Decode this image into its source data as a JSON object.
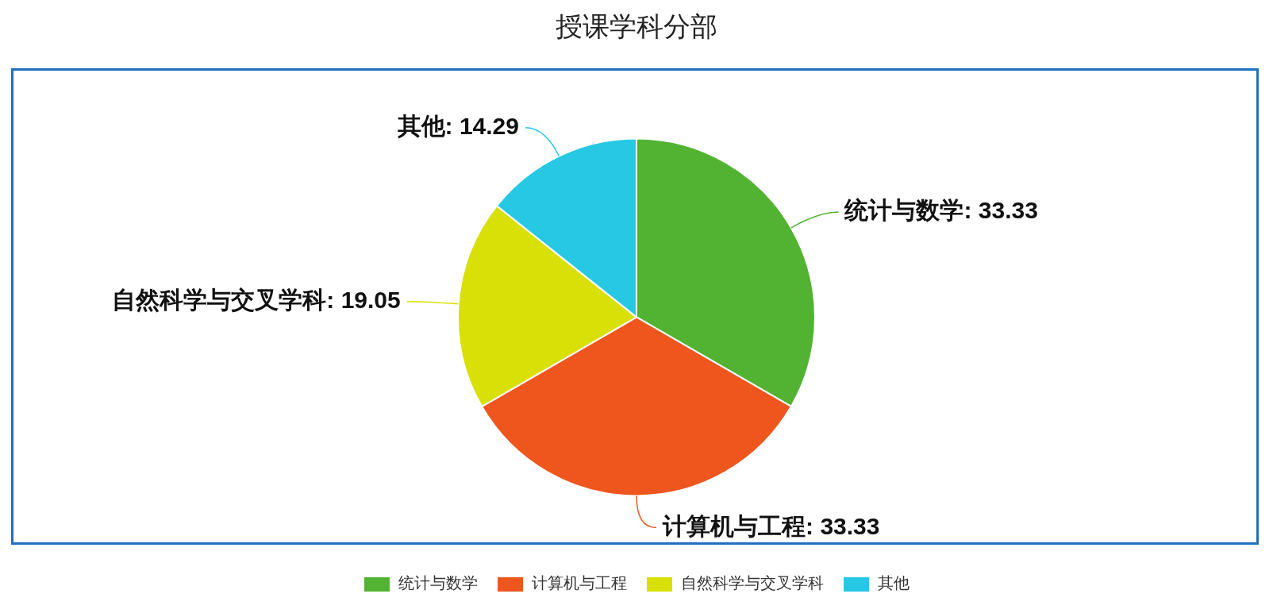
{
  "chart_data": {
    "type": "pie",
    "title": "授课学科分部",
    "categories": [
      "统计与数学",
      "计算机与工程",
      "自然科学与交叉学科",
      "其他"
    ],
    "values": [
      33.33,
      33.33,
      19.05,
      14.29
    ],
    "value_labels": [
      ": 33.33",
      ": 33.33",
      ": 19.05",
      ": 14.29"
    ],
    "colors": [
      "#52b332",
      "#ee561e",
      "#d9e007",
      "#27c8e3"
    ],
    "legend": "bottom"
  }
}
